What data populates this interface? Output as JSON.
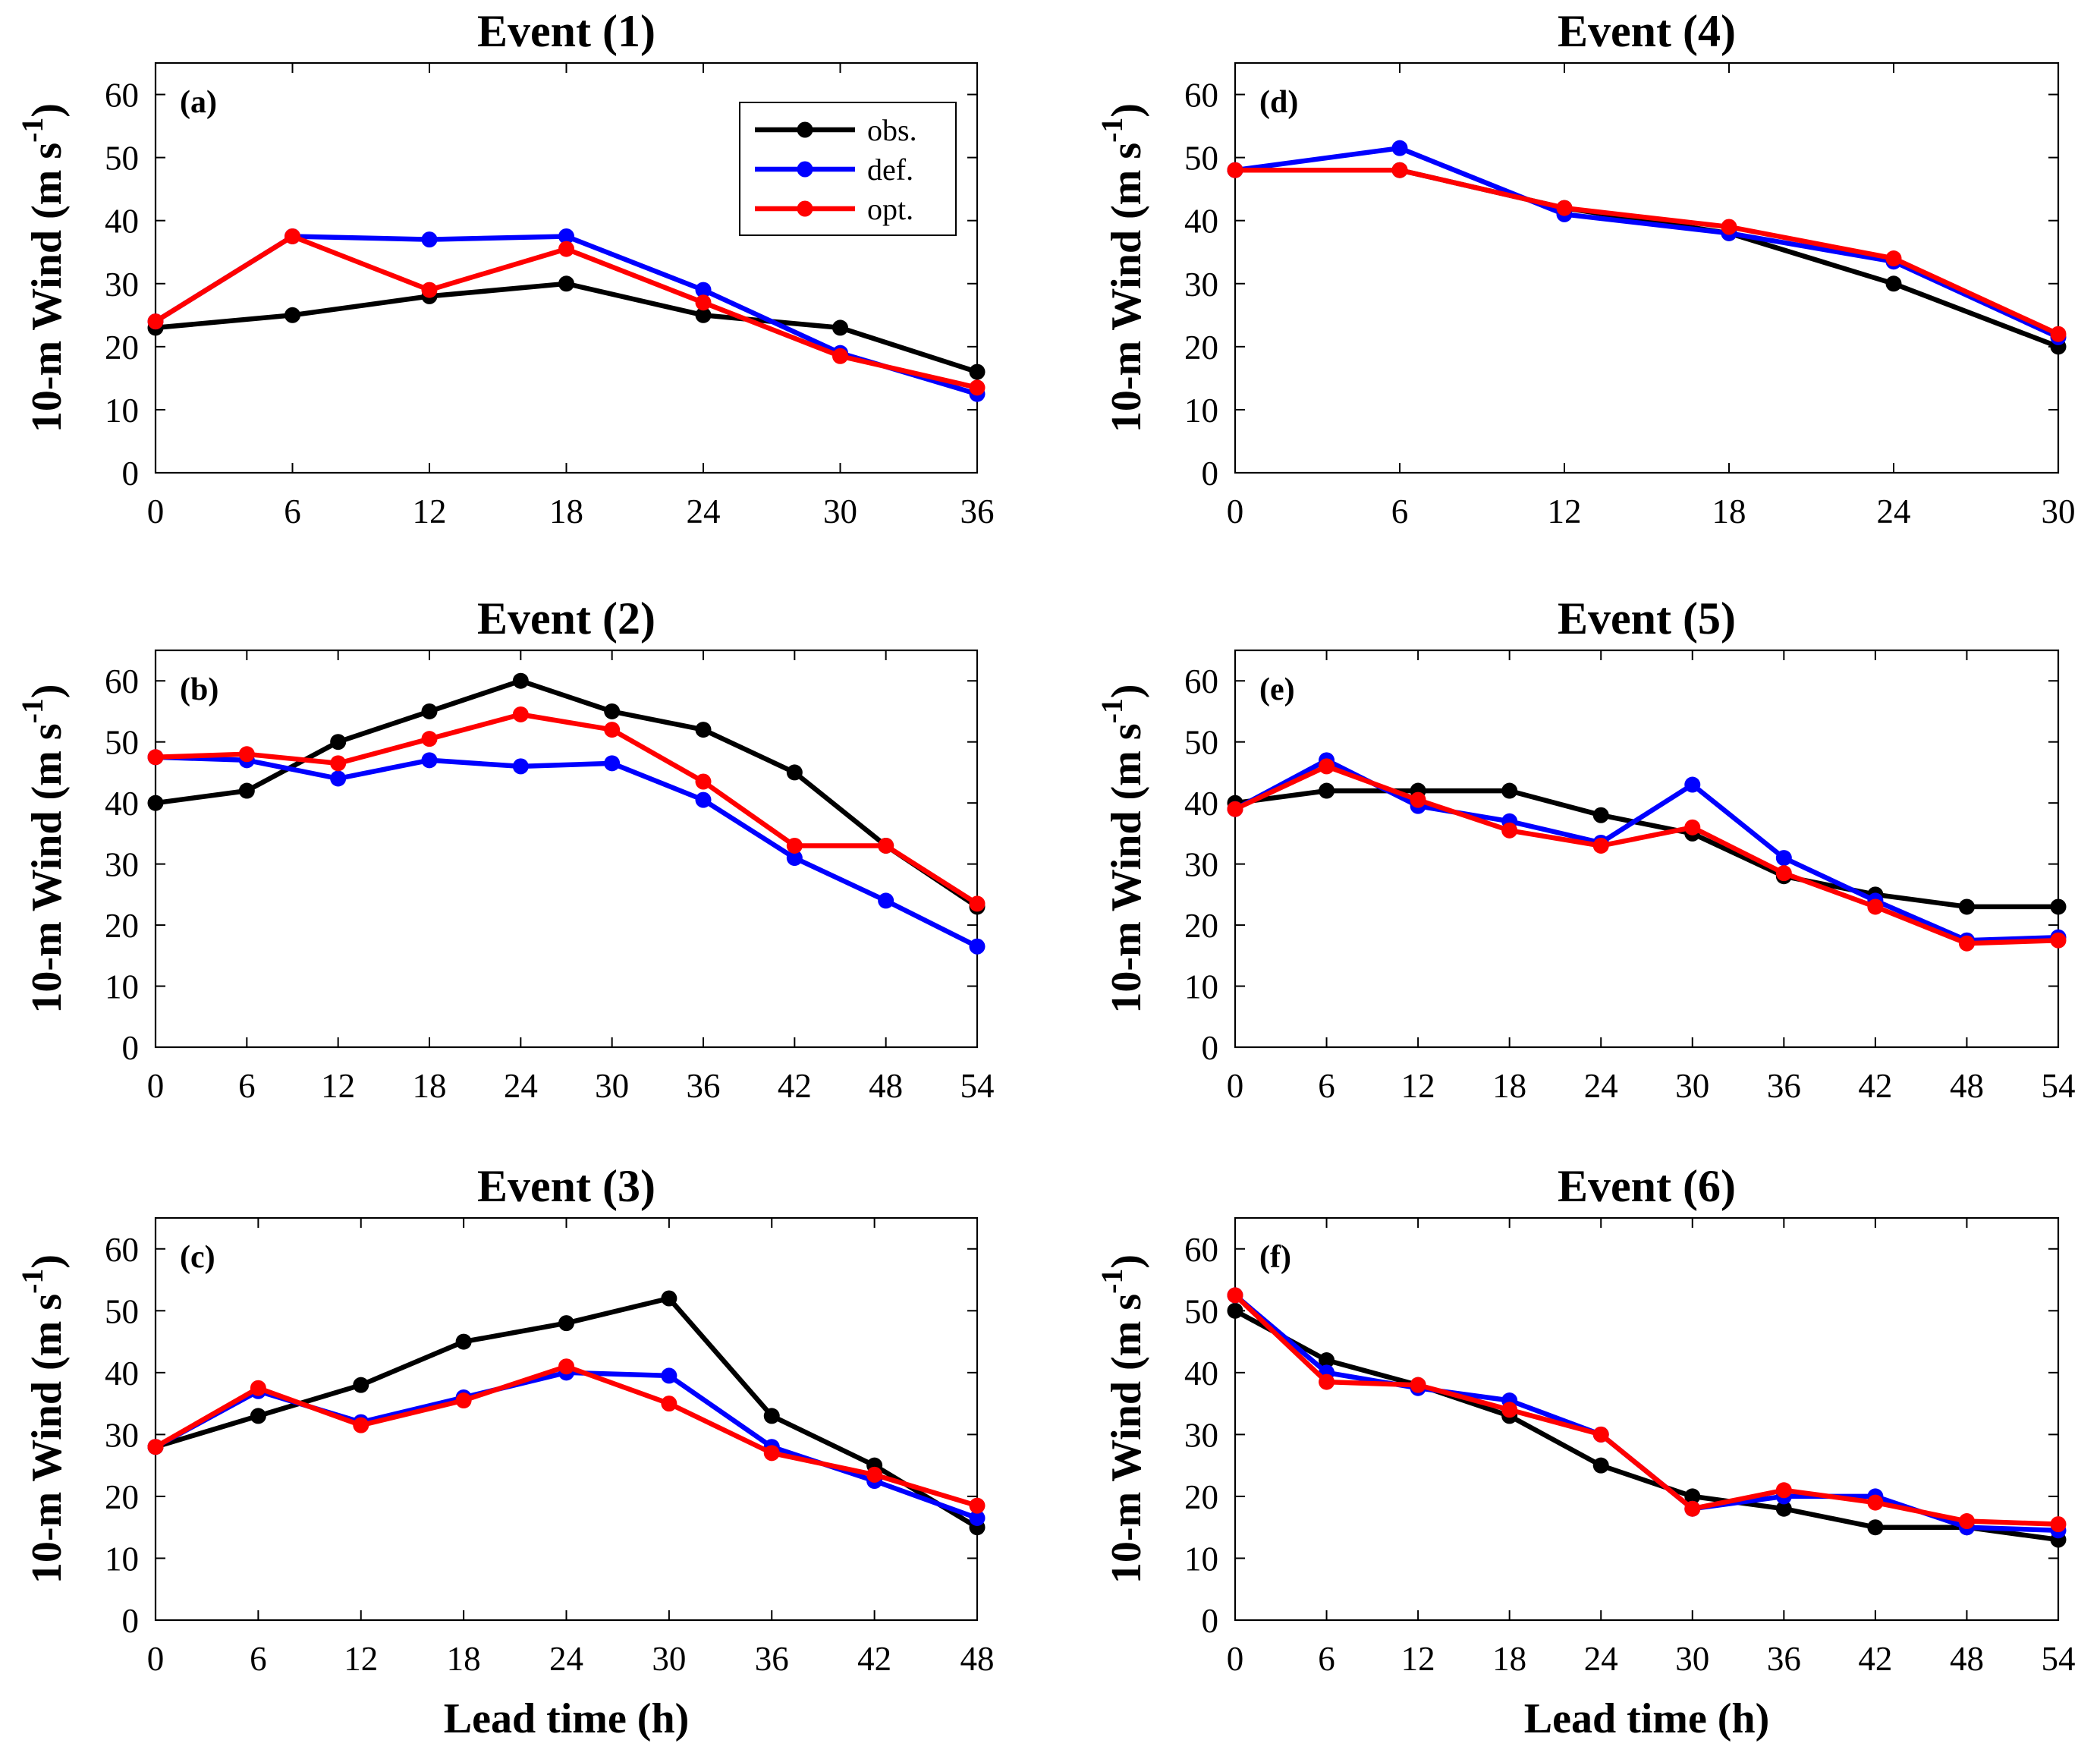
{
  "chart_data": [
    {
      "type": "line",
      "panel_label": "(a)",
      "title": "Event (1)",
      "ylabel": "10-m Wind (m s",
      "ylabel_sup": "-1",
      "ylabel_close": ")",
      "xlabel": "",
      "ylim": [
        0,
        65
      ],
      "yticks": [
        0,
        10,
        20,
        30,
        40,
        50,
        60
      ],
      "x": [
        0,
        6,
        12,
        18,
        24,
        30,
        36
      ],
      "xlim": [
        0,
        36
      ],
      "series": [
        {
          "name": "obs.",
          "color": "#000000",
          "values": [
            23,
            25,
            28,
            30,
            25,
            23,
            16
          ]
        },
        {
          "name": "def.",
          "color": "#0000ff",
          "values": [
            24,
            37.5,
            37,
            37.5,
            29,
            19,
            12.5
          ]
        },
        {
          "name": "opt.",
          "color": "#ff0000",
          "values": [
            24,
            37.5,
            29,
            35.5,
            27,
            18.5,
            13.5
          ]
        }
      ],
      "legend": {
        "position": "top-right",
        "entries": [
          "obs.",
          "def.",
          "opt."
        ]
      }
    },
    {
      "type": "line",
      "panel_label": "(b)",
      "title": "Event (2)",
      "ylabel": "10-m Wind (m s",
      "ylabel_sup": "-1",
      "ylabel_close": ")",
      "xlabel": "",
      "ylim": [
        0,
        65
      ],
      "yticks": [
        0,
        10,
        20,
        30,
        40,
        50,
        60
      ],
      "x": [
        0,
        6,
        12,
        18,
        24,
        30,
        36,
        42,
        48,
        54
      ],
      "xlim": [
        0,
        54
      ],
      "series": [
        {
          "name": "obs.",
          "color": "#000000",
          "values": [
            40,
            42,
            50,
            55,
            60,
            55,
            52,
            45,
            33,
            23
          ]
        },
        {
          "name": "def.",
          "color": "#0000ff",
          "values": [
            47.5,
            47,
            44,
            47,
            46,
            46.5,
            40.5,
            31,
            24,
            16.5
          ]
        },
        {
          "name": "opt.",
          "color": "#ff0000",
          "values": [
            47.5,
            48,
            46.5,
            50.5,
            54.5,
            52,
            43.5,
            33,
            33,
            23.5
          ]
        }
      ]
    },
    {
      "type": "line",
      "panel_label": "(c)",
      "title": "Event (3)",
      "ylabel": "10-m Wind (m s",
      "ylabel_sup": "-1",
      "ylabel_close": ")",
      "xlabel": "Lead time (h)",
      "ylim": [
        0,
        65
      ],
      "yticks": [
        0,
        10,
        20,
        30,
        40,
        50,
        60
      ],
      "x": [
        0,
        6,
        12,
        18,
        24,
        30,
        36,
        42,
        48
      ],
      "xlim": [
        0,
        48
      ],
      "series": [
        {
          "name": "obs.",
          "color": "#000000",
          "values": [
            28,
            33,
            38,
            45,
            48,
            52,
            33,
            25,
            15
          ]
        },
        {
          "name": "def.",
          "color": "#0000ff",
          "values": [
            28,
            37,
            32,
            36,
            40,
            39.5,
            28,
            22.5,
            16.5
          ]
        },
        {
          "name": "opt.",
          "color": "#ff0000",
          "values": [
            28,
            37.5,
            31.5,
            35.5,
            41,
            35,
            27,
            23.5,
            18.5
          ]
        }
      ]
    },
    {
      "type": "line",
      "panel_label": "(d)",
      "title": "Event (4)",
      "ylabel": "10-m Wind (m s",
      "ylabel_sup": "-1",
      "ylabel_close": ")",
      "xlabel": "",
      "ylim": [
        0,
        65
      ],
      "yticks": [
        0,
        10,
        20,
        30,
        40,
        50,
        60
      ],
      "x": [
        0,
        6,
        12,
        18,
        24,
        30
      ],
      "xlim": [
        0,
        30
      ],
      "series": [
        {
          "name": "obs.",
          "color": "#000000",
          "values": [
            48,
            48,
            42,
            38,
            30,
            20
          ]
        },
        {
          "name": "def.",
          "color": "#0000ff",
          "values": [
            48,
            51.5,
            41,
            38,
            33.5,
            21.5
          ]
        },
        {
          "name": "opt.",
          "color": "#ff0000",
          "values": [
            48,
            48,
            42,
            39,
            34,
            22
          ]
        }
      ]
    },
    {
      "type": "line",
      "panel_label": "(e)",
      "title": "Event (5)",
      "ylabel": "10-m Wind (m s",
      "ylabel_sup": "-1",
      "ylabel_close": ")",
      "xlabel": "",
      "ylim": [
        0,
        65
      ],
      "yticks": [
        0,
        10,
        20,
        30,
        40,
        50,
        60
      ],
      "x": [
        0,
        6,
        12,
        18,
        24,
        30,
        36,
        42,
        48,
        54
      ],
      "xlim": [
        0,
        54
      ],
      "series": [
        {
          "name": "obs.",
          "color": "#000000",
          "values": [
            40,
            42,
            42,
            42,
            38,
            35,
            28,
            25,
            23,
            23
          ]
        },
        {
          "name": "def.",
          "color": "#0000ff",
          "values": [
            39,
            47,
            39.5,
            37,
            33.5,
            43,
            31,
            24,
            17.5,
            18
          ]
        },
        {
          "name": "opt.",
          "color": "#ff0000",
          "values": [
            39,
            46,
            40.5,
            35.5,
            33,
            36,
            28.5,
            23,
            17,
            17.5
          ]
        }
      ]
    },
    {
      "type": "line",
      "panel_label": "(f)",
      "title": "Event (6)",
      "ylabel": "10-m Wind (m s",
      "ylabel_sup": "-1",
      "ylabel_close": ")",
      "xlabel": "Lead time (h)",
      "ylim": [
        0,
        65
      ],
      "yticks": [
        0,
        10,
        20,
        30,
        40,
        50,
        60
      ],
      "x": [
        0,
        6,
        12,
        18,
        24,
        30,
        36,
        42,
        48,
        54
      ],
      "xlim": [
        0,
        54
      ],
      "series": [
        {
          "name": "obs.",
          "color": "#000000",
          "values": [
            50,
            42,
            38,
            33,
            25,
            20,
            18,
            15,
            15,
            13
          ]
        },
        {
          "name": "def.",
          "color": "#0000ff",
          "values": [
            52.5,
            40,
            37.5,
            35.5,
            30,
            18,
            20,
            20,
            15,
            14.5
          ]
        },
        {
          "name": "opt.",
          "color": "#ff0000",
          "values": [
            52.5,
            38.5,
            38,
            34,
            30,
            18,
            21,
            19,
            16,
            15.5
          ]
        }
      ]
    }
  ]
}
